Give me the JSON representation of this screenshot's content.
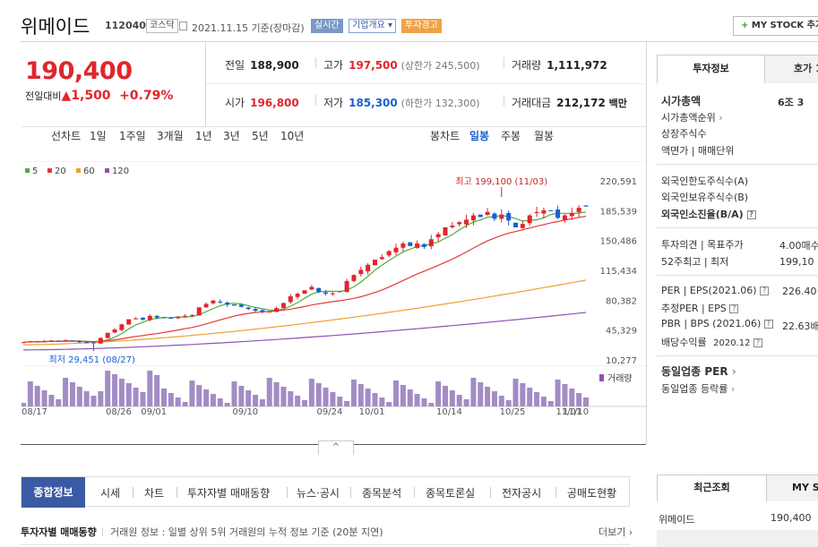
{
  "header": {
    "name": "위메이드",
    "code": "112040",
    "market": "코스닥",
    "date": "2021.11.15 기준(장마감)",
    "realtime": "실시간",
    "overview": "기업개요",
    "warning": "투자경고",
    "mystock": "MY STOCK 추가"
  },
  "quote": {
    "price": "190,400",
    "change_label": "전일대비",
    "change_value": "1,500",
    "change_pct": "+0.79%",
    "prev_label": "전일",
    "prev": "188,900",
    "high_label": "고가",
    "high": "197,500",
    "upper": "(상한가 245,500)",
    "volume_label": "거래량",
    "volume": "1,111,972",
    "open_label": "시가",
    "open": "196,800",
    "low_label": "저가",
    "low": "185,300",
    "lower": "(하한가 132,300)",
    "amount_label": "거래대금",
    "amount": "212,172",
    "amount_unit": "백만"
  },
  "period_tabs": {
    "label": "선차트",
    "items": [
      "1일",
      "1주일",
      "3개월",
      "1년",
      "3년",
      "5년",
      "10년"
    ],
    "candle_label": "봉차트",
    "candle_items": [
      "일봉",
      "주봉",
      "월봉"
    ],
    "selected_candle": "일봉"
  },
  "legend": [
    {
      "label": "5",
      "color": "#4caf3d"
    },
    {
      "label": "20",
      "color": "#e53935"
    },
    {
      "label": "60",
      "color": "#f0a030"
    },
    {
      "label": "120",
      "color": "#8e52b6"
    }
  ],
  "chart_data": {
    "type": "candlestick",
    "y_ticks": [
      "220,591",
      "185,539",
      "150,486",
      "115,434",
      "80,382",
      "45,329",
      "10,277"
    ],
    "ylim": [
      10277,
      220591
    ],
    "x_labels": [
      "08/17",
      "08/26",
      "09/01",
      "09/10",
      "09/24",
      "10/01",
      "10/14",
      "10/25",
      "11/01",
      "11/10"
    ],
    "high_annotation": "최고 199,100 (11/03)",
    "low_annotation": "최저 29,451 (08/27)",
    "volume_label": "거래량",
    "closes": [
      31000,
      32000,
      31500,
      32500,
      33000,
      32000,
      33500,
      32500,
      31000,
      30500,
      29800,
      36000,
      42000,
      46000,
      52000,
      58000,
      59000,
      57500,
      62000,
      60000,
      60500,
      59500,
      61000,
      62000,
      63000,
      72000,
      76000,
      80000,
      78000,
      75000,
      74000,
      72500,
      70000,
      68000,
      67000,
      67000,
      71000,
      77000,
      85000,
      88000,
      92000,
      96000,
      90000,
      88000,
      88500,
      91000,
      103000,
      110000,
      116000,
      122000,
      128000,
      131000,
      138000,
      142000,
      147000,
      144000,
      147000,
      143000,
      152000,
      158000,
      166000,
      168000,
      172000,
      175000,
      180000,
      178000,
      184000,
      176000,
      181000,
      174000,
      166000,
      170000,
      180000,
      184000,
      186000,
      185000,
      177000,
      180000,
      183000,
      188900,
      190400
    ]
  },
  "toggle": "^",
  "bottom_nav": [
    "종합정보",
    "시세",
    "차트",
    "투자자별 매매동향",
    "뉴스·공시",
    "종목분석",
    "종목토론실",
    "전자공시",
    "공매도현황"
  ],
  "trend": {
    "title": "투자자별 매매동향",
    "desc": "거래원 정보 : 일별 상위 5위 거래원의 누적 정보 기준 (20분 지연)",
    "more": "더보기"
  },
  "right_panel": {
    "tab_active": "투자정보",
    "tab_other": "호가 1",
    "mcap_label": "시가총액",
    "mcap_value": "6조 3",
    "mcap_rank": "시가총액순위",
    "shares": "상장주식수",
    "face": "액면가 | 매매단위",
    "foreign_limit": "외국인한도주식수(A)",
    "foreign_hold": "외국인보유주식수(B)",
    "foreign_ratio": "외국인소진율(B/A)",
    "opinion": "투자의견 | 목표주가",
    "opinion_value": "4.00매수",
    "w52": "52주최고 | 최저",
    "w52_value": "199,10",
    "per": "PER | EPS(2021.06)",
    "per_value": "226.40",
    "est_per": "추정PER | EPS",
    "pbr": "PBR | BPS (2021.06)",
    "pbr_value": "22.63배",
    "div": "배당수익률",
    "div_date": "2020.12",
    "peer_per": "동일업종 PER",
    "peer_rate": "동일업종 등락률",
    "recent_tab": "최근조회",
    "mys_tab": "MY ST",
    "recent_name": "위메이드",
    "recent_price": "190,400"
  }
}
